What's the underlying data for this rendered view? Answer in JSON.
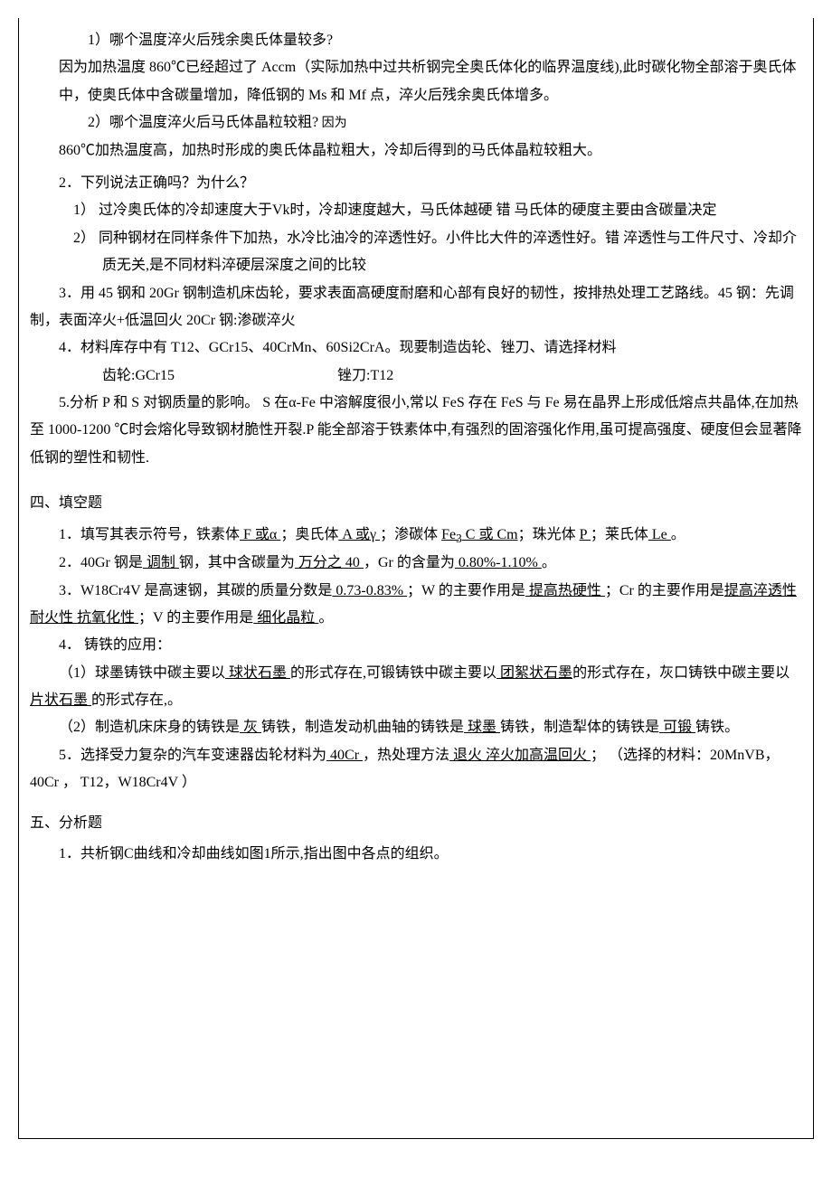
{
  "q1_1_title": "1）哪个温度淬火后残余奥氏体量较多?",
  "q1_1_body": "因为加热温度 860℃已经超过了 Accm（实际加热中过共析钢完全奥氏体化的临界温度线),此时碳化物全部溶于奥氏体中，使奥氏体中含碳量增加，降低钢的 Ms 和 Mf 点，淬火后残余奥氏体增多。",
  "q1_2_title_a": "2）哪个温度淬火后马氏体晶粒较粗?",
  "q1_2_title_b": " 因为",
  "q1_2_body": "860℃加热温度高，加热时形成的奥氏体晶粒粗大，冷却后得到的马氏体晶粒较粗大。",
  "q2_title": "2．下列说法正确吗？为什么？",
  "q2_opt1": "1） 过冷奥氏体的冷却速度大于Vk时，冷却速度越大，马氏体越硬  错 马氏体的硬度主要由含碳量决定",
  "q2_opt2": "2） 同种钢材在同样条件下加热，水冷比油冷的淬透性好。小件比大件的淬透性好。错 淬透性与工件尺寸、冷却介质无关,是不同材料淬硬层深度之间的比较",
  "q3": "3．用 45 钢和 20Gr 钢制造机床齿轮，要求表面高硬度耐磨和心部有良好的韧性，按排热处理工艺路线。45 钢：先调制，表面淬火+低温回火 20Cr 钢:渗碳淬火",
  "q4_line1": "4．材料库存中有 T12、GCr15、40CrMn、60Si2CrA。现要制造齿轮、锉刀、请选择材料",
  "q4_line2_a": "齿轮:GCr15",
  "q4_line2_b": "锉刀:T12",
  "q5": "5.分析 P 和 S 对钢质量的影响。 S 在α-Fe 中溶解度很小,常以 FeS 存在 FeS 与 Fe 易在晶界上形成低熔点共晶体,在加热至 1000-1200 ℃时会熔化导致钢材脆性开裂.P 能全部溶于铁素体中,有强烈的固溶强化作用,虽可提高强度、硬度但会显著降低钢的塑性和韧性.",
  "sec4_title": "四、填空题",
  "f1_a": "1．填写其表示符号，铁素体",
  "f1_u1": " F 或α    ",
  "f1_b": "；奥氏体",
  "f1_u2": "  A 或γ  ",
  "f1_c": "；渗碳体 ",
  "f1_u3": " Fe",
  "f1_u3_sub": "3",
  "f1_u3b": " C 或 Cm",
  "f1_d": "；珠光体",
  "f1_u4": " P ",
  "f1_e": "；莱氏体",
  "f1_u5": " Le  ",
  "f1_f": "。",
  "f2_a": "2．40Gr 钢是",
  "f2_u1": "     调制       ",
  "f2_b": "钢，其中含碳量为",
  "f2_u2": "   万分之 40      ",
  "f2_c": "，Gr 的含量为",
  "f2_u3": " 0.80%-1.10%     ",
  "f2_d": " 。",
  "f3_a": "3．W18Cr4V 是高速钢，其碳的质量分数是",
  "f3_u1": "  0.73-0.83%     ",
  "f3_b": "；W 的主要作用是",
  "f3_u2": " 提高热硬性    ",
  "f3_c": "；Cr 的主要作用是",
  "f3_u3": "提高淬透性 耐火性 抗氧化性      ",
  "f3_d": "；V 的主要作用是",
  "f3_u4": " 细化晶粒   ",
  "f3_e": " 。",
  "f4_title": "4． 铸铁的应用：",
  "f4_1_a": "（1）球墨铸铁中碳主要以",
  "f4_1_u1": "   球状石墨     ",
  "f4_1_b": "的形式存在,可锻铸铁中碳主要以",
  "f4_1_u2": "  团絮状石墨",
  "f4_1_c": "的形式存在，灰口铸铁中碳主要以",
  "f4_1_u3": "  片状石墨    ",
  "f4_1_d": "的形式存在,。",
  "f4_2_a": "（2）制造机床床身的铸铁是",
  "f4_2_u1": "  灰        ",
  "f4_2_b": "铸铁，制造发动机曲轴的铸铁是",
  "f4_2_u2": "   球墨    ",
  "f4_2_c": "铸铁，制造犁体的铸铁是",
  "f4_2_u3": " 可锻      ",
  "f4_2_d": "铸铁。",
  "f5_a": "5．选择受力复杂的汽车变速器齿轮材料为",
  "f5_u1": "  40Cr        ",
  "f5_b": "，热处理方法",
  "f5_u2": " 退火 淬火加高温回火        ",
  "f5_c": "；  （选择的材料：20MnVB， 40Cr ， T12，W18Cr4V ）",
  "sec5_title": "五、分析题",
  "a1": "1．共析钢C曲线和冷却曲线如图1所示,指出图中各点的组织。"
}
